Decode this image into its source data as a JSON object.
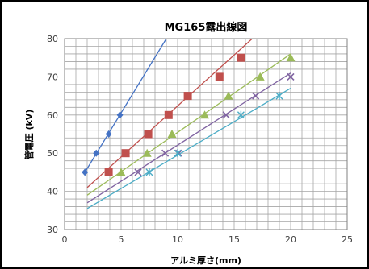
{
  "chart_data": {
    "type": "scatter",
    "title": "MG165露出線図",
    "xlabel": "アルミ厚さ(mm)",
    "ylabel": "管電圧 (kV)",
    "xlim": [
      0,
      25
    ],
    "ylim": [
      30,
      80
    ],
    "x_ticks": [
      "0",
      "5",
      "10",
      "15",
      "20",
      "25"
    ],
    "y_ticks": [
      "30",
      "40",
      "50",
      "60",
      "70",
      "80"
    ],
    "grid": true,
    "legend": "none",
    "series": [
      {
        "name": "",
        "color": "#4472C4",
        "marker": "diamond",
        "x": [
          1.8,
          2.8,
          3.9,
          4.9
        ],
        "y": [
          45,
          50,
          55,
          60
        ],
        "trend": [
          [
            1.8,
            45
          ],
          [
            9.0,
            80
          ]
        ]
      },
      {
        "name": "",
        "color": "#C0504D",
        "marker": "square",
        "x": [
          3.9,
          5.4,
          7.4,
          9.2,
          10.9,
          13.7,
          15.6
        ],
        "y": [
          45,
          50,
          55,
          60,
          65,
          70,
          75
        ],
        "trend": [
          [
            2.0,
            41
          ],
          [
            16.6,
            80
          ]
        ]
      },
      {
        "name": "",
        "color": "#9BBB59",
        "marker": "triangle",
        "x": [
          5.0,
          7.3,
          9.5,
          12.4,
          14.5,
          17.3,
          20.0
        ],
        "y": [
          45,
          50,
          55,
          60,
          65,
          70,
          75
        ],
        "trend": [
          [
            2.0,
            39
          ],
          [
            20.0,
            76
          ]
        ]
      },
      {
        "name": "",
        "color": "#8064A2",
        "marker": "x",
        "x": [
          6.5,
          8.9,
          10.1,
          14.3,
          16.9,
          20.0
        ],
        "y": [
          45,
          50,
          50,
          60,
          65,
          70
        ],
        "trend": [
          [
            2.0,
            37
          ],
          [
            20.0,
            71
          ]
        ]
      },
      {
        "name": "",
        "color": "#4BACC6",
        "marker": "star",
        "x": [
          7.5,
          10.0,
          15.6,
          19.0
        ],
        "y": [
          45,
          50,
          60,
          65
        ],
        "trend": [
          [
            2.0,
            35.5
          ],
          [
            20.0,
            67
          ]
        ]
      }
    ]
  }
}
